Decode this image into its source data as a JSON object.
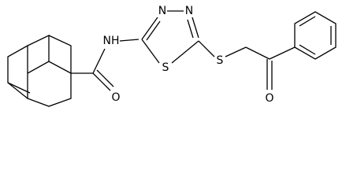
{
  "atoms": [
    {
      "label": "NH"
    },
    {
      "label": "N"
    },
    {
      "label": "N"
    },
    {
      "label": "S"
    },
    {
      "label": "S"
    },
    {
      "label": "O"
    },
    {
      "label": "O"
    }
  ]
}
